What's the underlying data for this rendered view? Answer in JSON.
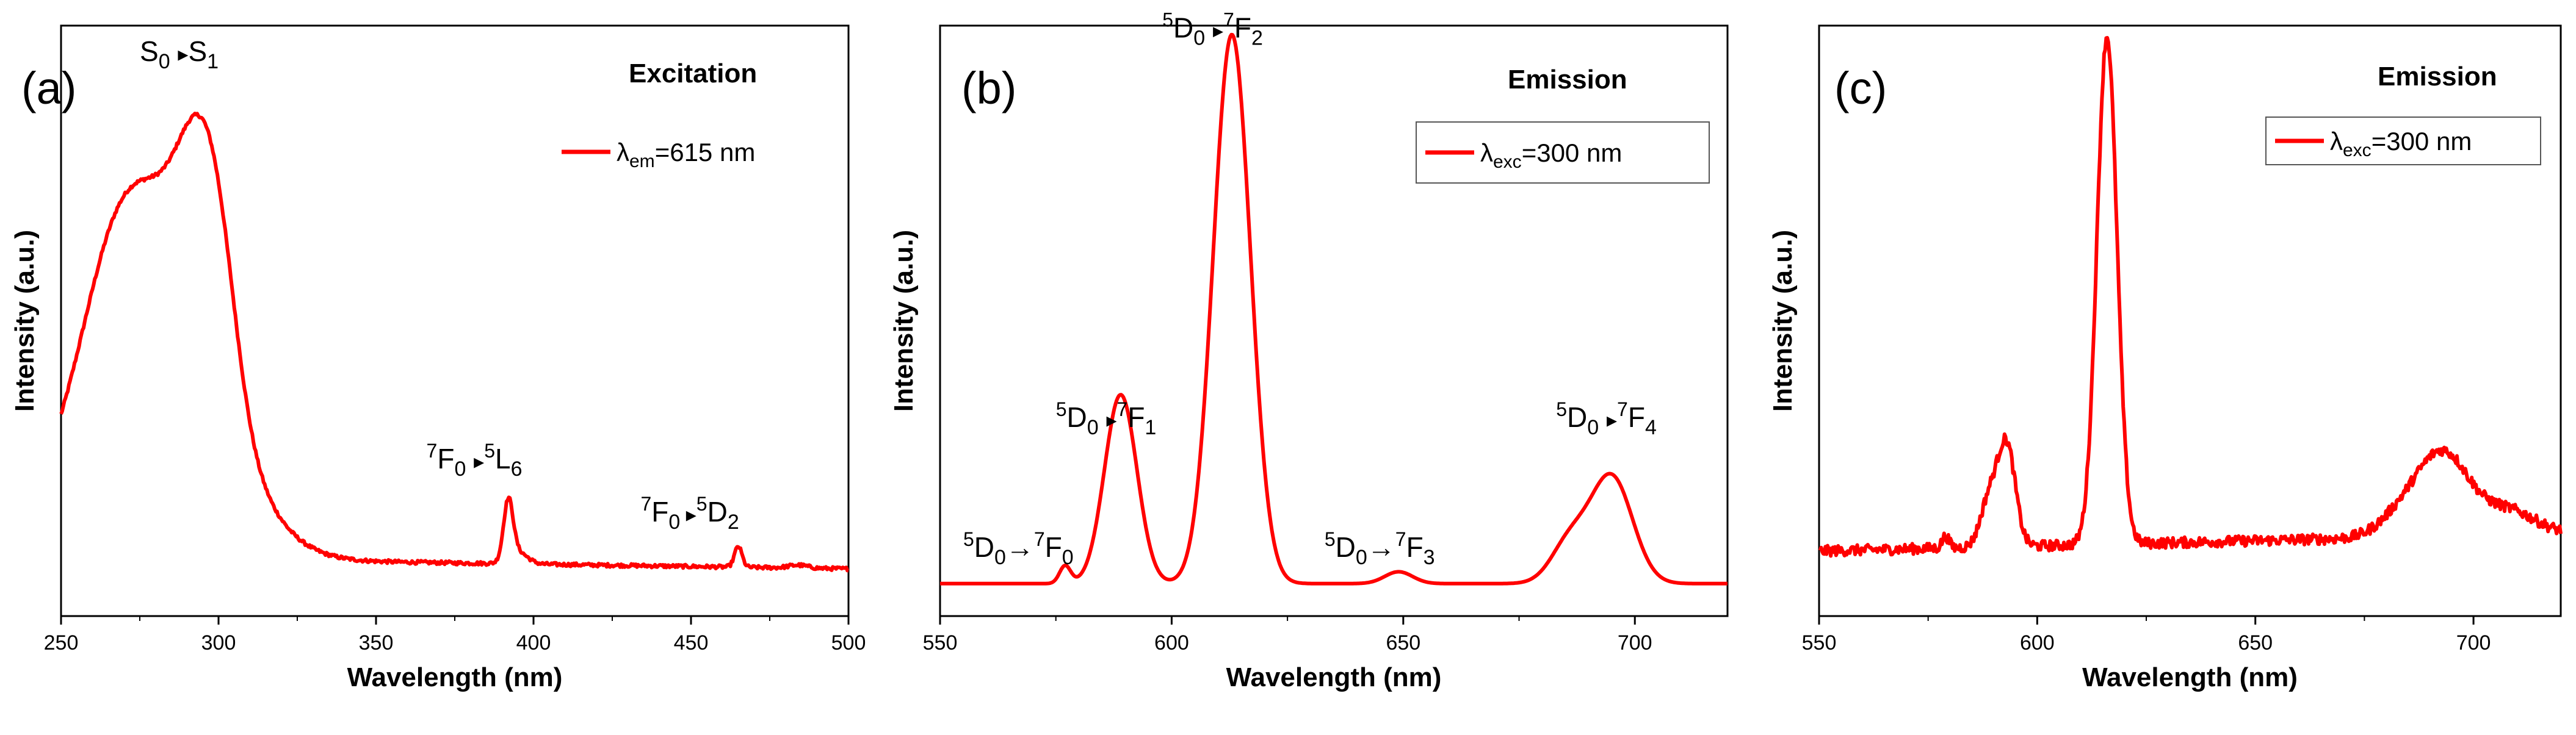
{
  "chart_data": [
    {
      "type": "line",
      "panel_label": "(a)",
      "title": "Excitation",
      "xlabel": "Wavelength (nm)",
      "ylabel": "Intensity (a.u.)",
      "xlim": [
        250,
        500
      ],
      "ylim": [
        0,
        1.0
      ],
      "xticks": [
        250,
        300,
        350,
        400,
        450,
        500
      ],
      "line_color": "#ff0000",
      "legend": {
        "symbol": "λ",
        "sub": "em",
        "text": "=615 nm"
      },
      "series": [
        {
          "name": "λem=615 nm",
          "peaks": [
            {
              "c": 278,
              "h": 0.62,
              "w": 20
            },
            {
              "c": 292,
              "h": 0.17,
              "w": 6
            },
            {
              "c": 300,
              "h": 0.23,
              "w": 6
            },
            {
              "c": 265,
              "h": 0.05,
              "w": 8
            },
            {
              "c": 392,
              "h": 0.1,
              "w": 1.5
            },
            {
              "c": 465,
              "h": 0.035,
              "w": 1.2
            },
            {
              "c": 395,
              "h": 0.02,
              "w": 3
            },
            {
              "c": 484,
              "h": 0.005,
              "w": 3
            }
          ],
          "baseline": [
            0.1,
            0.08
          ],
          "noise": 0.003
        }
      ],
      "annotations": [
        {
          "parts": [
            {
              "t": "S"
            },
            {
              "t": "0",
              "sub": true
            },
            {
              "t": "  "
            },
            {
              "arrow": true
            },
            {
              "t": "S"
            },
            {
              "t": "1",
              "sub": true
            }
          ],
          "x": 275,
          "y": 0.94
        },
        {
          "parts": [
            {
              "t": "7",
              "sup": true
            },
            {
              "t": "F"
            },
            {
              "t": "0",
              "sub": true
            },
            {
              "t": "  "
            },
            {
              "arrow": true
            },
            {
              "t": "5",
              "sup": true
            },
            {
              "t": "L"
            },
            {
              "t": "6",
              "sub": true
            }
          ],
          "x": 366,
          "y": 0.25
        },
        {
          "parts": [
            {
              "t": "7",
              "sup": true
            },
            {
              "t": "F"
            },
            {
              "t": "0",
              "sub": true
            },
            {
              "arrow": true
            },
            {
              "t": "5",
              "sup": true
            },
            {
              "t": "D"
            },
            {
              "t": "2",
              "sub": true
            }
          ],
          "x": 434,
          "y": 0.16
        }
      ]
    },
    {
      "type": "line",
      "panel_label": "(b)",
      "title": "Emission",
      "xlabel": "Wavelength (nm)",
      "ylabel": "Intensity (a.u.)",
      "xlim": [
        550,
        720
      ],
      "ylim": [
        0,
        1.0
      ],
      "xticks": [
        550,
        600,
        650,
        700
      ],
      "line_color": "#ff0000",
      "legend": {
        "symbol": "λ",
        "sub": "exc",
        "text": "=300 nm"
      },
      "series": [
        {
          "name": "λexc=300 nm",
          "peaks": [
            {
              "c": 613,
              "h": 0.93,
              "w": 4
            },
            {
              "c": 589,
              "h": 0.32,
              "w": 3.5
            },
            {
              "c": 577,
              "h": 0.03,
              "w": 1.2
            },
            {
              "c": 649,
              "h": 0.02,
              "w": 3
            },
            {
              "c": 695,
              "h": 0.18,
              "w": 4.5
            },
            {
              "c": 686,
              "h": 0.07,
              "w": 4
            }
          ],
          "baseline": [
            0.055,
            0.055
          ],
          "noise": 0.0
        }
      ],
      "annotations": [
        {
          "parts": [
            {
              "t": "5",
              "sup": true
            },
            {
              "t": "D"
            },
            {
              "t": "0",
              "sub": true
            },
            {
              "arrowlong": true
            },
            {
              "t": "7",
              "sup": true
            },
            {
              "t": "F"
            },
            {
              "t": "0",
              "sub": true
            }
          ],
          "x": 555,
          "y": 0.1
        },
        {
          "parts": [
            {
              "t": "5",
              "sup": true
            },
            {
              "t": "D"
            },
            {
              "t": "0",
              "sub": true
            },
            {
              "t": "  "
            },
            {
              "arrow": true
            },
            {
              "t": "7",
              "sup": true
            },
            {
              "t": "F"
            },
            {
              "t": "1",
              "sub": true
            }
          ],
          "x": 575,
          "y": 0.32
        },
        {
          "parts": [
            {
              "t": "5",
              "sup": true
            },
            {
              "t": "D"
            },
            {
              "t": "0",
              "sub": true
            },
            {
              "t": "  "
            },
            {
              "arrow": true
            },
            {
              "t": "7",
              "sup": true
            },
            {
              "t": "F"
            },
            {
              "t": "2",
              "sub": true
            }
          ],
          "x": 598,
          "y": 0.98
        },
        {
          "parts": [
            {
              "t": "5",
              "sup": true
            },
            {
              "t": "D"
            },
            {
              "t": "0",
              "sub": true
            },
            {
              "arrowlong": true
            },
            {
              "t": "7",
              "sup": true
            },
            {
              "t": "F"
            },
            {
              "t": "3",
              "sub": true
            }
          ],
          "x": 633,
          "y": 0.1
        },
        {
          "parts": [
            {
              "t": "5",
              "sup": true
            },
            {
              "t": "D"
            },
            {
              "t": "0",
              "sub": true
            },
            {
              "t": "  "
            },
            {
              "arrow": true
            },
            {
              "t": "7",
              "sup": true
            },
            {
              "t": "F"
            },
            {
              "t": "4",
              "sub": true
            }
          ],
          "x": 683,
          "y": 0.32
        }
      ]
    },
    {
      "type": "line",
      "panel_label": "(c)",
      "title": "Emission",
      "xlabel": "Wavelength (nm)",
      "ylabel": "Intensity (a.u.)",
      "xlim": [
        550,
        720
      ],
      "ylim": [
        0,
        1.0
      ],
      "xticks": [
        550,
        600,
        650,
        700
      ],
      "line_color": "#ff0000",
      "legend": {
        "symbol": "λ",
        "sub": "exc",
        "text": "=300 nm"
      },
      "series": [
        {
          "name": "λexc=300 nm",
          "peaks": [
            {
              "c": 616,
              "h": 0.86,
              "w": 2.3
            },
            {
              "c": 593,
              "h": 0.17,
              "w": 2
            },
            {
              "c": 589,
              "h": 0.08,
              "w": 2
            },
            {
              "c": 579,
              "h": 0.02,
              "w": 0.8
            },
            {
              "c": 693,
              "h": 0.14,
              "w": 6
            },
            {
              "c": 683,
              "h": 0.03,
              "w": 5
            },
            {
              "c": 708,
              "h": 0.04,
              "w": 6
            }
          ],
          "baseline": [
            0.11,
            0.14
          ],
          "noise": 0.009
        }
      ],
      "annotations": []
    }
  ]
}
